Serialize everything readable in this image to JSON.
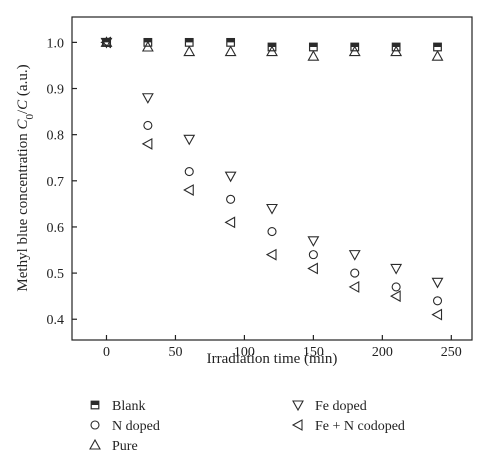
{
  "chart_data": {
    "type": "scatter",
    "xlabel": "Irradiation time (min)",
    "ylabel_parts": [
      "Methyl blue concentration ",
      "C",
      "0",
      "/",
      "C",
      " (a.u.)"
    ],
    "xlim": [
      -25,
      265
    ],
    "ylim": [
      0.355,
      1.055
    ],
    "x_ticks": [
      0,
      50,
      100,
      150,
      200,
      250
    ],
    "y_ticks": [
      0.4,
      0.5,
      0.6,
      0.7,
      0.8,
      0.9,
      1.0
    ],
    "y_tick_labels": [
      "0.4",
      "0.5",
      "0.6",
      "0.7",
      "0.8",
      "0.9",
      "1.0"
    ],
    "x": [
      0,
      30,
      60,
      90,
      120,
      150,
      180,
      210,
      240
    ],
    "series": [
      {
        "name": "Blank",
        "marker": "square-half",
        "values": [
          1.0,
          1.0,
          1.0,
          1.0,
          0.99,
          0.99,
          0.99,
          0.99,
          0.99
        ]
      },
      {
        "name": "N doped",
        "marker": "circle",
        "values": [
          1.0,
          0.82,
          0.72,
          0.66,
          0.59,
          0.54,
          0.5,
          0.47,
          0.44
        ]
      },
      {
        "name": "Pure",
        "marker": "triangle-up",
        "values": [
          1.0,
          0.99,
          0.98,
          0.98,
          0.98,
          0.97,
          0.98,
          0.98,
          0.97
        ]
      },
      {
        "name": "Fe doped",
        "marker": "triangle-down",
        "values": [
          1.0,
          0.88,
          0.79,
          0.71,
          0.64,
          0.57,
          0.54,
          0.51,
          0.48
        ]
      },
      {
        "name": "Fe + N codoped",
        "marker": "triangle-left",
        "values": [
          1.0,
          0.78,
          0.68,
          0.61,
          0.54,
          0.51,
          0.47,
          0.45,
          0.41
        ]
      }
    ],
    "legend_position": "bottom",
    "grid": false
  }
}
